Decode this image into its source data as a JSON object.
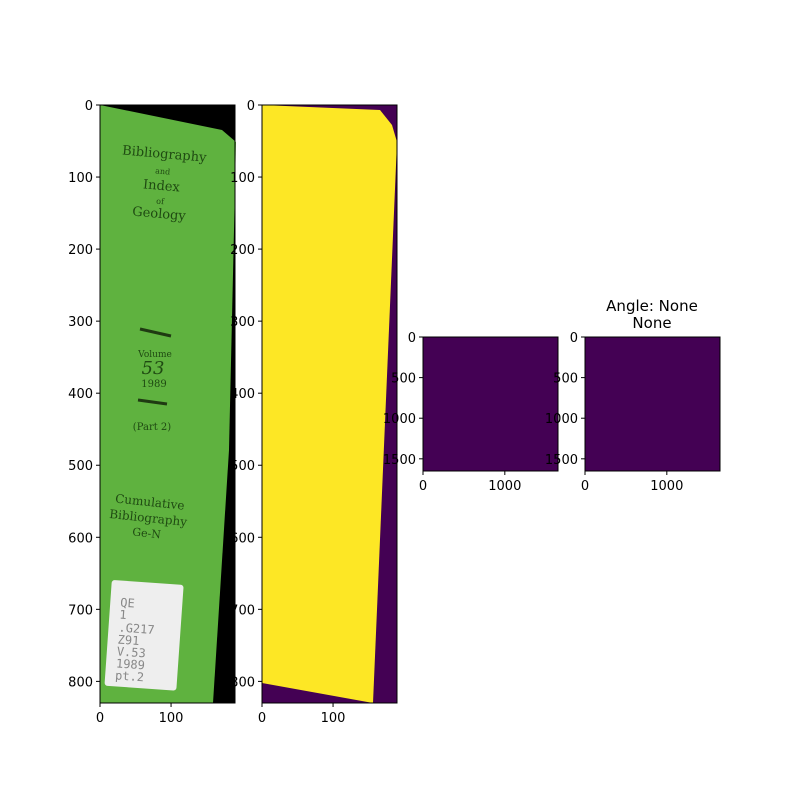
{
  "colors": {
    "spine_green": "#5fb23f",
    "spine_black": "#000000",
    "viridis_low": "#440154",
    "viridis_high": "#fde725",
    "label_white": "#eeeeee",
    "label_text": "#888888"
  },
  "panel4_title": {
    "line1": "Angle: None",
    "line2": "None"
  },
  "spine": {
    "title_lines": [
      "Bibliography",
      "and",
      "Index",
      "of",
      "Geology"
    ],
    "volume_label": "Volume",
    "volume_number": "53",
    "year": "1989",
    "part": "(Part 2)",
    "subtitle_lines": [
      "Cumulative",
      "Bibliography",
      "Ge-N"
    ],
    "call_number_lines": [
      "QE",
      "1",
      ".G217",
      "Z91",
      "V.53",
      "1989",
      "pt.2"
    ]
  },
  "chart_data": [
    {
      "type": "image",
      "content": "photo of green book spine",
      "xlim": [
        0,
        190
      ],
      "ylim": [
        830,
        0
      ],
      "xticks": [
        0,
        100
      ],
      "yticks": [
        0,
        100,
        200,
        300,
        400,
        500,
        600,
        700,
        800
      ]
    },
    {
      "type": "heatmap",
      "content": "binary mask (yellow spine region on purple background)",
      "xlim": [
        0,
        190
      ],
      "ylim": [
        830,
        0
      ],
      "xticks": [
        0,
        100
      ],
      "yticks": [
        0,
        100,
        200,
        300,
        400,
        500,
        600,
        700,
        800
      ]
    },
    {
      "type": "heatmap",
      "content": "uniform purple field",
      "xlim": [
        0,
        1650
      ],
      "ylim": [
        1650,
        0
      ],
      "xticks": [
        0,
        1000
      ],
      "yticks": [
        0,
        500,
        1000,
        1500
      ]
    },
    {
      "type": "heatmap",
      "title": "Angle: None\nNone",
      "content": "uniform purple field",
      "xlim": [
        0,
        1650
      ],
      "ylim": [
        1650,
        0
      ],
      "xticks": [
        0,
        1000
      ],
      "yticks": [
        0,
        500,
        1000,
        1500
      ]
    }
  ]
}
